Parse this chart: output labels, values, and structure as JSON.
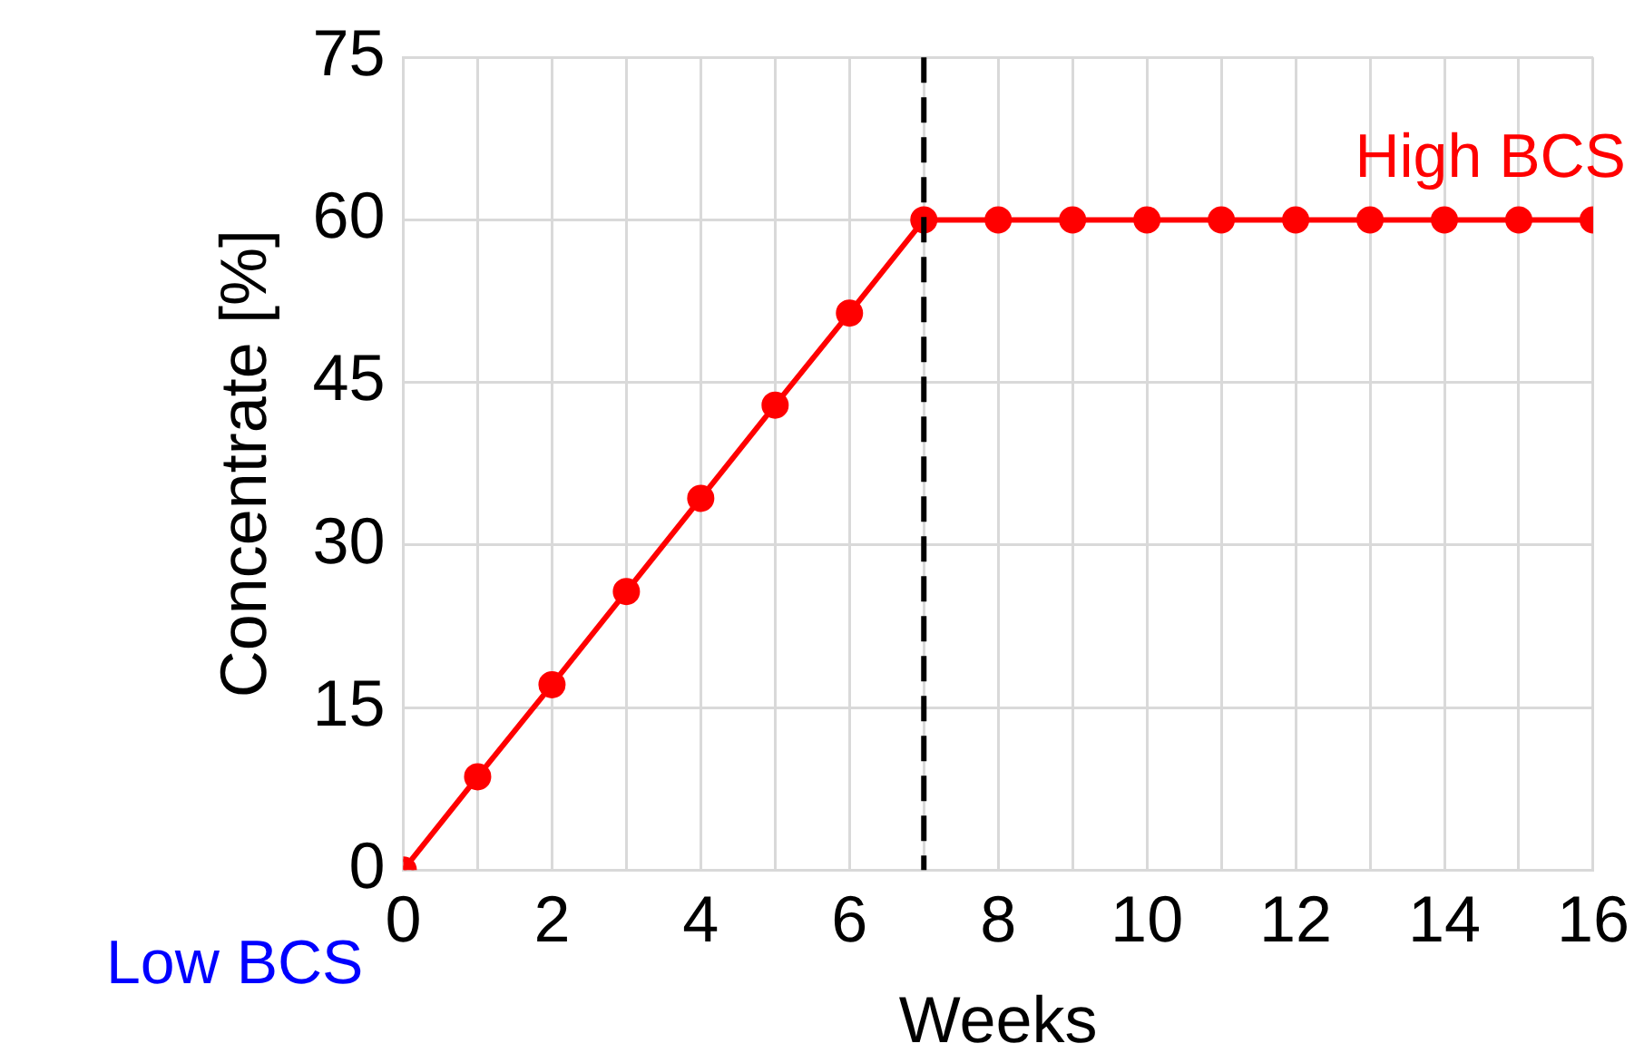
{
  "chart_data": {
    "type": "line",
    "xlabel": "Weeks",
    "ylabel": "Concentrate [%]",
    "x": [
      0,
      1,
      2,
      3,
      4,
      5,
      6,
      7,
      8,
      9,
      10,
      11,
      12,
      13,
      14,
      15,
      16
    ],
    "series": [
      {
        "color": "#ff0000",
        "values": [
          0,
          8.6,
          17.1,
          25.7,
          34.3,
          42.9,
          51.4,
          60,
          60,
          60,
          60,
          60,
          60,
          60,
          60,
          60,
          60
        ]
      }
    ],
    "xlim": [
      0,
      16
    ],
    "xticks": [
      0,
      {
        "value": 1,
        "label": null
      },
      2,
      {
        "value": 3,
        "label": null
      },
      4,
      {
        "value": 5,
        "label": null
      },
      6,
      {
        "value": 7,
        "label": null
      },
      8,
      {
        "value": 9,
        "label": null
      },
      10,
      {
        "value": 11,
        "label": null
      },
      12,
      {
        "value": 13,
        "label": null
      },
      14,
      {
        "value": 15,
        "label": null
      },
      16
    ],
    "ylim": [
      0,
      75
    ],
    "yticks": [
      0,
      15,
      30,
      45,
      60,
      75
    ],
    "grid": true,
    "legend": false,
    "marker": "circle",
    "line_style": "solid",
    "ref_lines": [
      {
        "axis": "x",
        "value": 7,
        "color": "#000000",
        "line_style": "dashed"
      }
    ],
    "annotations": [
      {
        "text": "High BCS",
        "x": 16,
        "y": 60
      },
      {
        "text": "Low BCS",
        "x": 0,
        "y": 0
      }
    ]
  }
}
